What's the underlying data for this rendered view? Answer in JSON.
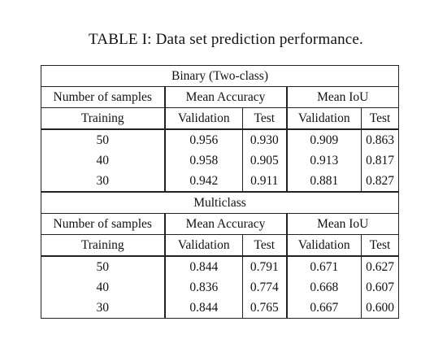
{
  "caption": "TABLE I: Data set prediction performance.",
  "headers": {
    "number_of_samples": "Number of samples",
    "mean_accuracy": "Mean Accuracy",
    "mean_iou": "Mean IoU",
    "training": "Training",
    "validation": "Validation",
    "test": "Test"
  },
  "sections": [
    {
      "title": "Binary (Two-class)",
      "rows": [
        [
          "50",
          "0.956",
          "0.930",
          "0.909",
          "0.863"
        ],
        [
          "40",
          "0.958",
          "0.905",
          "0.913",
          "0.817"
        ],
        [
          "30",
          "0.942",
          "0.911",
          "0.881",
          "0.827"
        ]
      ]
    },
    {
      "title": "Multiclass",
      "rows": [
        [
          "50",
          "0.844",
          "0.791",
          "0.671",
          "0.627"
        ],
        [
          "40",
          "0.836",
          "0.774",
          "0.668",
          "0.607"
        ],
        [
          "30",
          "0.844",
          "0.765",
          "0.667",
          "0.600"
        ]
      ]
    }
  ]
}
